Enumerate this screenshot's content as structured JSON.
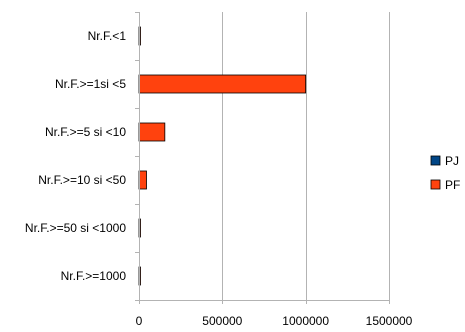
{
  "chart_data": {
    "type": "bar",
    "orientation": "horizontal",
    "categories": [
      "Nr.F.<1",
      "Nr.F.>=1si <5",
      "Nr.F.>=5 si <10",
      "Nr.F.>=10 si <50",
      "Nr.F.>=50 si <1000",
      "Nr.F.>=1000"
    ],
    "series": [
      {
        "name": "PJ",
        "color": "#004586",
        "values": [
          0,
          0,
          0,
          0,
          0,
          0
        ]
      },
      {
        "name": "PF",
        "color": "#ff420e",
        "values": [
          8000,
          1000000,
          155000,
          45000,
          8000,
          3000
        ]
      }
    ],
    "x_ticks": [
      "0",
      "500000",
      "1000000",
      "1500000"
    ],
    "xlim": [
      0,
      1500000
    ],
    "grid": true,
    "legend_position": "right"
  }
}
